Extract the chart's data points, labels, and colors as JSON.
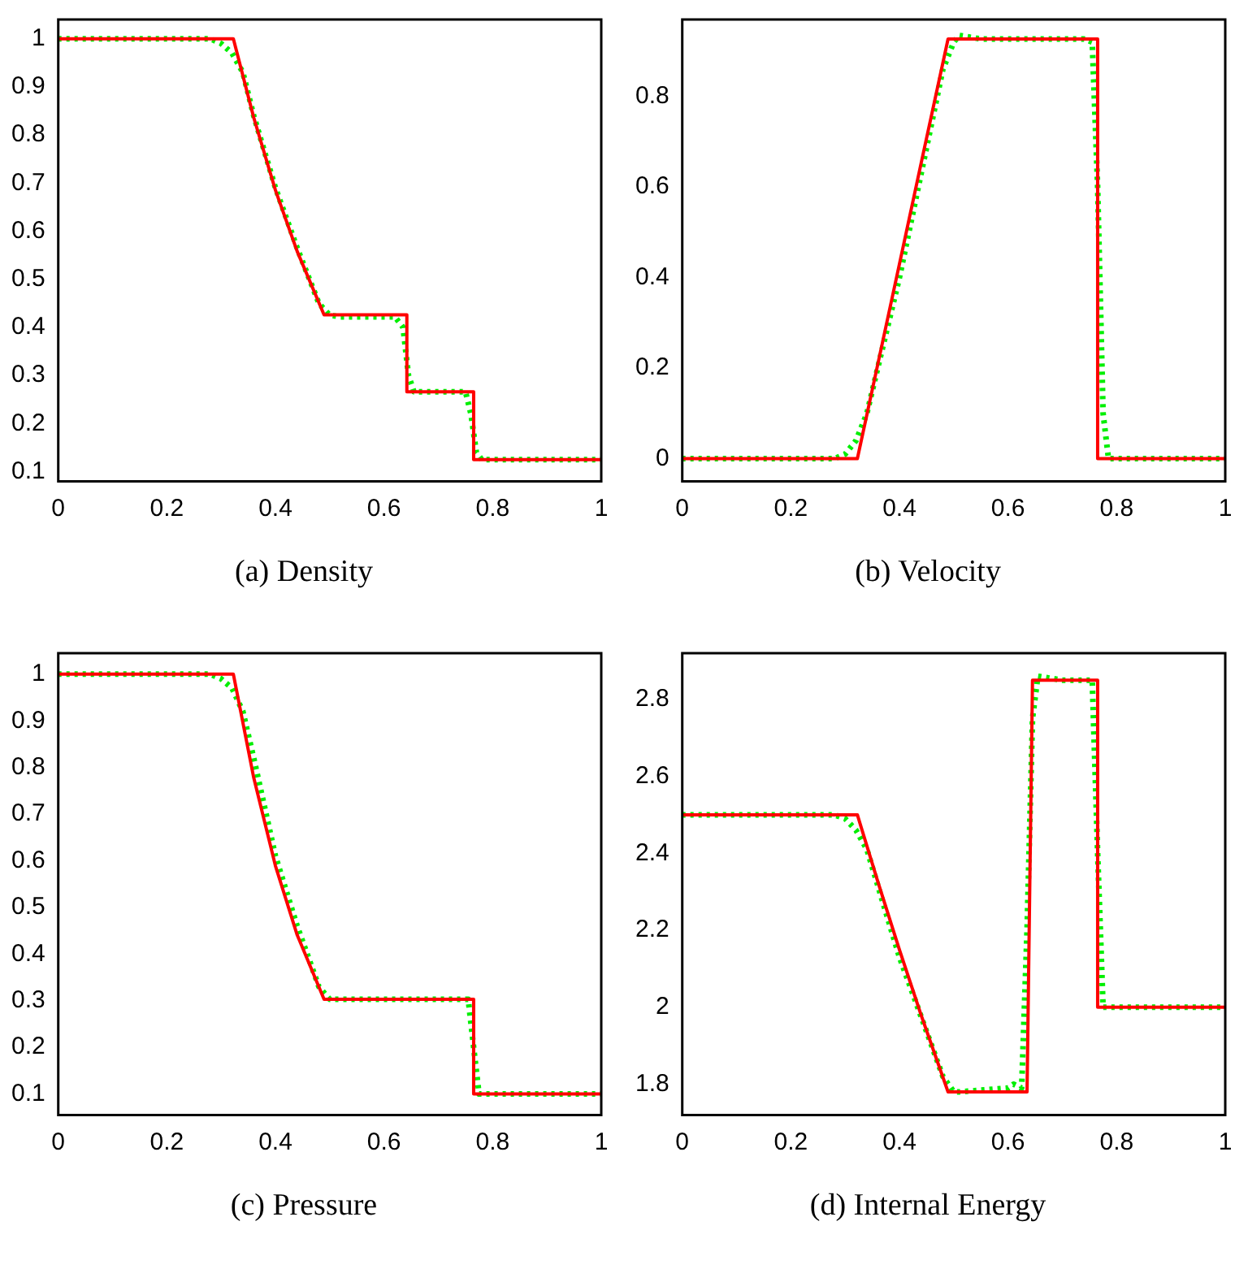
{
  "chart_data": [
    {
      "type": "line",
      "title": "(a) Density",
      "xlim": [
        0,
        1
      ],
      "xticks": [
        0,
        0.2,
        0.4,
        0.6,
        0.8,
        1
      ],
      "ylim": [
        0.08,
        1.04
      ],
      "yticks": [
        0.1,
        0.2,
        0.3,
        0.4,
        0.5,
        0.6,
        0.7,
        0.8,
        0.9,
        1
      ],
      "grid": false,
      "legend": false,
      "series": [
        {
          "color": "#ff0000",
          "line_style": "solid",
          "x": [
            0,
            0.3225,
            0.36,
            0.4,
            0.44,
            0.4895,
            0.642,
            0.642,
            0.765,
            0.765,
            1
          ],
          "values": [
            1,
            1,
            0.836,
            0.685,
            0.558,
            0.426,
            0.426,
            0.266,
            0.266,
            0.125,
            0.125
          ]
        },
        {
          "color": "#00ee00",
          "line_style": "dotted",
          "x": [
            0,
            0.28,
            0.3,
            0.32,
            0.34,
            0.36,
            0.4,
            0.44,
            0.48,
            0.5,
            0.52,
            0.62,
            0.635,
            0.645,
            0.655,
            0.75,
            0.76,
            0.77,
            0.78,
            1
          ],
          "values": [
            1,
            1,
            0.99,
            0.97,
            0.93,
            0.84,
            0.69,
            0.565,
            0.45,
            0.425,
            0.422,
            0.422,
            0.4,
            0.3,
            0.266,
            0.266,
            0.22,
            0.14,
            0.125,
            0.125
          ]
        }
      ]
    },
    {
      "type": "line",
      "title": "(b) Velocity",
      "xlim": [
        0,
        1
      ],
      "xticks": [
        0,
        0.2,
        0.4,
        0.6,
        0.8,
        1
      ],
      "ylim": [
        -0.05,
        0.97
      ],
      "yticks": [
        0,
        0.2,
        0.4,
        0.6,
        0.8
      ],
      "grid": false,
      "legend": false,
      "series": [
        {
          "color": "#ff0000",
          "line_style": "solid",
          "x": [
            0,
            0.3225,
            0.36,
            0.4,
            0.44,
            0.4895,
            0.765,
            0.765,
            1
          ],
          "values": [
            0,
            0,
            0.208,
            0.43,
            0.653,
            0.927,
            0.927,
            0,
            0
          ]
        },
        {
          "color": "#00ee00",
          "line_style": "dotted",
          "x": [
            0,
            0.28,
            0.3,
            0.32,
            0.34,
            0.4,
            0.48,
            0.5,
            0.51,
            0.55,
            0.74,
            0.755,
            0.765,
            0.775,
            0.785,
            1
          ],
          "values": [
            0,
            0,
            0.01,
            0.04,
            0.1,
            0.4,
            0.86,
            0.92,
            0.935,
            0.927,
            0.927,
            0.92,
            0.6,
            0.1,
            0,
            0
          ]
        }
      ]
    },
    {
      "type": "line",
      "title": "(c) Pressure",
      "xlim": [
        0,
        1
      ],
      "xticks": [
        0,
        0.2,
        0.4,
        0.6,
        0.8,
        1
      ],
      "ylim": [
        0.055,
        1.045
      ],
      "yticks": [
        0.1,
        0.2,
        0.3,
        0.4,
        0.5,
        0.6,
        0.7,
        0.8,
        0.9,
        1
      ],
      "grid": false,
      "legend": false,
      "series": [
        {
          "color": "#ff0000",
          "line_style": "solid",
          "x": [
            0,
            0.3225,
            0.36,
            0.4,
            0.44,
            0.4895,
            0.765,
            0.765,
            1
          ],
          "values": [
            1,
            1,
            0.778,
            0.589,
            0.441,
            0.303,
            0.303,
            0.1,
            0.1
          ]
        },
        {
          "color": "#00ee00",
          "line_style": "dotted",
          "x": [
            0,
            0.28,
            0.3,
            0.32,
            0.34,
            0.36,
            0.4,
            0.44,
            0.48,
            0.5,
            0.755,
            0.765,
            0.775,
            1
          ],
          "values": [
            1,
            1,
            0.99,
            0.97,
            0.92,
            0.82,
            0.61,
            0.46,
            0.33,
            0.303,
            0.303,
            0.2,
            0.1,
            0.1
          ]
        }
      ]
    },
    {
      "type": "line",
      "title": "(d) Internal Energy",
      "xlim": [
        0,
        1
      ],
      "xticks": [
        0,
        0.2,
        0.4,
        0.6,
        0.8,
        1
      ],
      "ylim": [
        1.72,
        2.92
      ],
      "yticks": [
        1.8,
        2,
        2.2,
        2.4,
        2.6,
        2.8
      ],
      "grid": false,
      "legend": false,
      "series": [
        {
          "color": "#ff0000",
          "line_style": "solid",
          "x": [
            0,
            0.3225,
            0.36,
            0.4,
            0.44,
            0.4895,
            0.635,
            0.645,
            0.765,
            0.765,
            1
          ],
          "values": [
            2.5,
            2.5,
            2.327,
            2.149,
            1.979,
            1.78,
            1.78,
            2.85,
            2.85,
            2.0,
            2.0
          ]
        },
        {
          "color": "#00ee00",
          "line_style": "dotted",
          "x": [
            0,
            0.28,
            0.3,
            0.32,
            0.34,
            0.4,
            0.48,
            0.5,
            0.51,
            0.6,
            0.61,
            0.625,
            0.635,
            0.645,
            0.655,
            0.7,
            0.755,
            0.765,
            0.775,
            1
          ],
          "values": [
            2.5,
            2.5,
            2.49,
            2.46,
            2.41,
            2.13,
            1.82,
            1.78,
            1.78,
            1.79,
            1.8,
            1.79,
            2.2,
            2.75,
            2.86,
            2.85,
            2.85,
            2.4,
            2.0,
            2.0
          ]
        }
      ]
    }
  ]
}
